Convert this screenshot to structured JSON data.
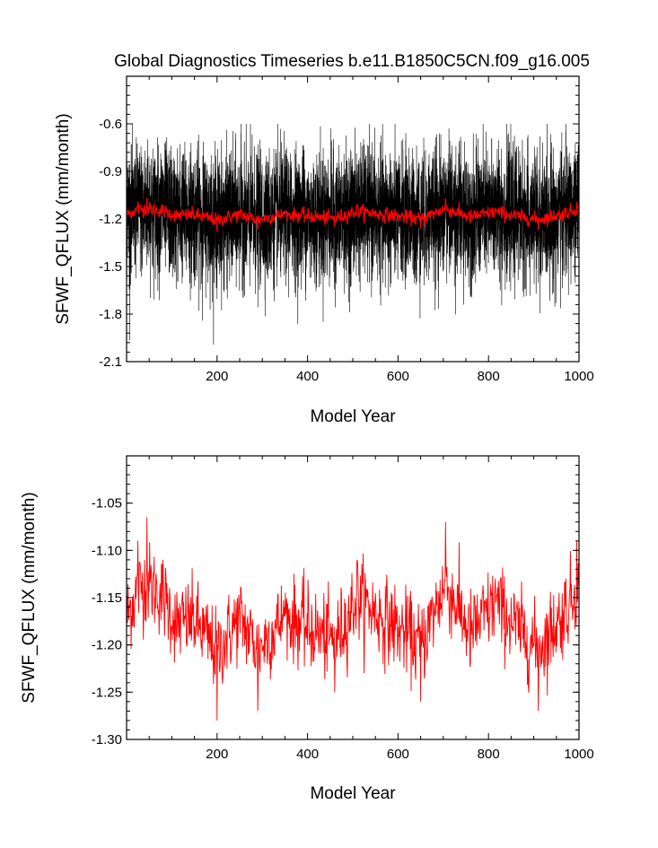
{
  "chart_data": [
    {
      "type": "line",
      "title": "Global Diagnostics Timeseries b.e11.B1850C5CN.f09_g16.005",
      "xlabel": "Model Year",
      "ylabel": "SFWF_QFLUX (mm/month)",
      "xlim": [
        0,
        1000
      ],
      "ylim": [
        -2.1,
        -0.3
      ],
      "xticks": [
        200,
        400,
        600,
        800,
        1000
      ],
      "yticks": [
        -2.1,
        -1.8,
        -1.5,
        -1.2,
        -0.9,
        -0.6
      ],
      "xtick_labels": [
        "200",
        "400",
        "600",
        "800",
        "1000"
      ],
      "ytick_labels": [
        "-2.1",
        "-1.8",
        "-1.5",
        "-1.2",
        "-0.9",
        "-0.6"
      ],
      "grid": false,
      "series": [
        {
          "color": "#000000",
          "description": "monthly values",
          "x_range": [
            0,
            1000
          ],
          "typical_range": [
            -1.7,
            -0.65
          ],
          "extremes": {
            "min": -2.0,
            "max": -0.6
          },
          "mean": -1.17
        },
        {
          "color": "#ff0000",
          "description": "annual mean",
          "x_range": [
            0,
            1000
          ],
          "typical_range": [
            -1.22,
            -1.1
          ],
          "mean": -1.17
        }
      ]
    },
    {
      "type": "line",
      "title": "",
      "xlabel": "Model Year",
      "ylabel": "SFWF_QFLUX (mm/month)",
      "xlim": [
        0,
        1000
      ],
      "ylim": [
        -1.3,
        -1.0
      ],
      "xticks": [
        200,
        400,
        600,
        800,
        1000
      ],
      "yticks": [
        -1.3,
        -1.25,
        -1.2,
        -1.15,
        -1.1,
        -1.05
      ],
      "xtick_labels": [
        "200",
        "400",
        "600",
        "800",
        "1000"
      ],
      "ytick_labels": [
        "-1.30",
        "-1.25",
        "-1.20",
        "-1.15",
        "-1.10",
        "-1.05"
      ],
      "grid": false,
      "series": [
        {
          "color": "#ff0000",
          "description": "annual mean",
          "x_range": [
            0,
            1000
          ],
          "mean": -1.17,
          "key_points": [
            {
              "x": 0,
              "y": -1.17
            },
            {
              "x": 25,
              "y": -1.09
            },
            {
              "x": 45,
              "y": -1.065
            },
            {
              "x": 80,
              "y": -1.11
            },
            {
              "x": 110,
              "y": -1.19
            },
            {
              "x": 150,
              "y": -1.18
            },
            {
              "x": 200,
              "y": -1.28
            },
            {
              "x": 250,
              "y": -1.17
            },
            {
              "x": 290,
              "y": -1.27
            },
            {
              "x": 350,
              "y": -1.17
            },
            {
              "x": 400,
              "y": -1.2
            },
            {
              "x": 460,
              "y": -1.25
            },
            {
              "x": 510,
              "y": -1.11
            },
            {
              "x": 560,
              "y": -1.17
            },
            {
              "x": 600,
              "y": -1.2
            },
            {
              "x": 650,
              "y": -1.26
            },
            {
              "x": 705,
              "y": -1.07
            },
            {
              "x": 760,
              "y": -1.22
            },
            {
              "x": 815,
              "y": -1.13
            },
            {
              "x": 860,
              "y": -1.2
            },
            {
              "x": 910,
              "y": -1.27
            },
            {
              "x": 960,
              "y": -1.17
            },
            {
              "x": 995,
              "y": -1.09
            }
          ]
        }
      ]
    }
  ]
}
